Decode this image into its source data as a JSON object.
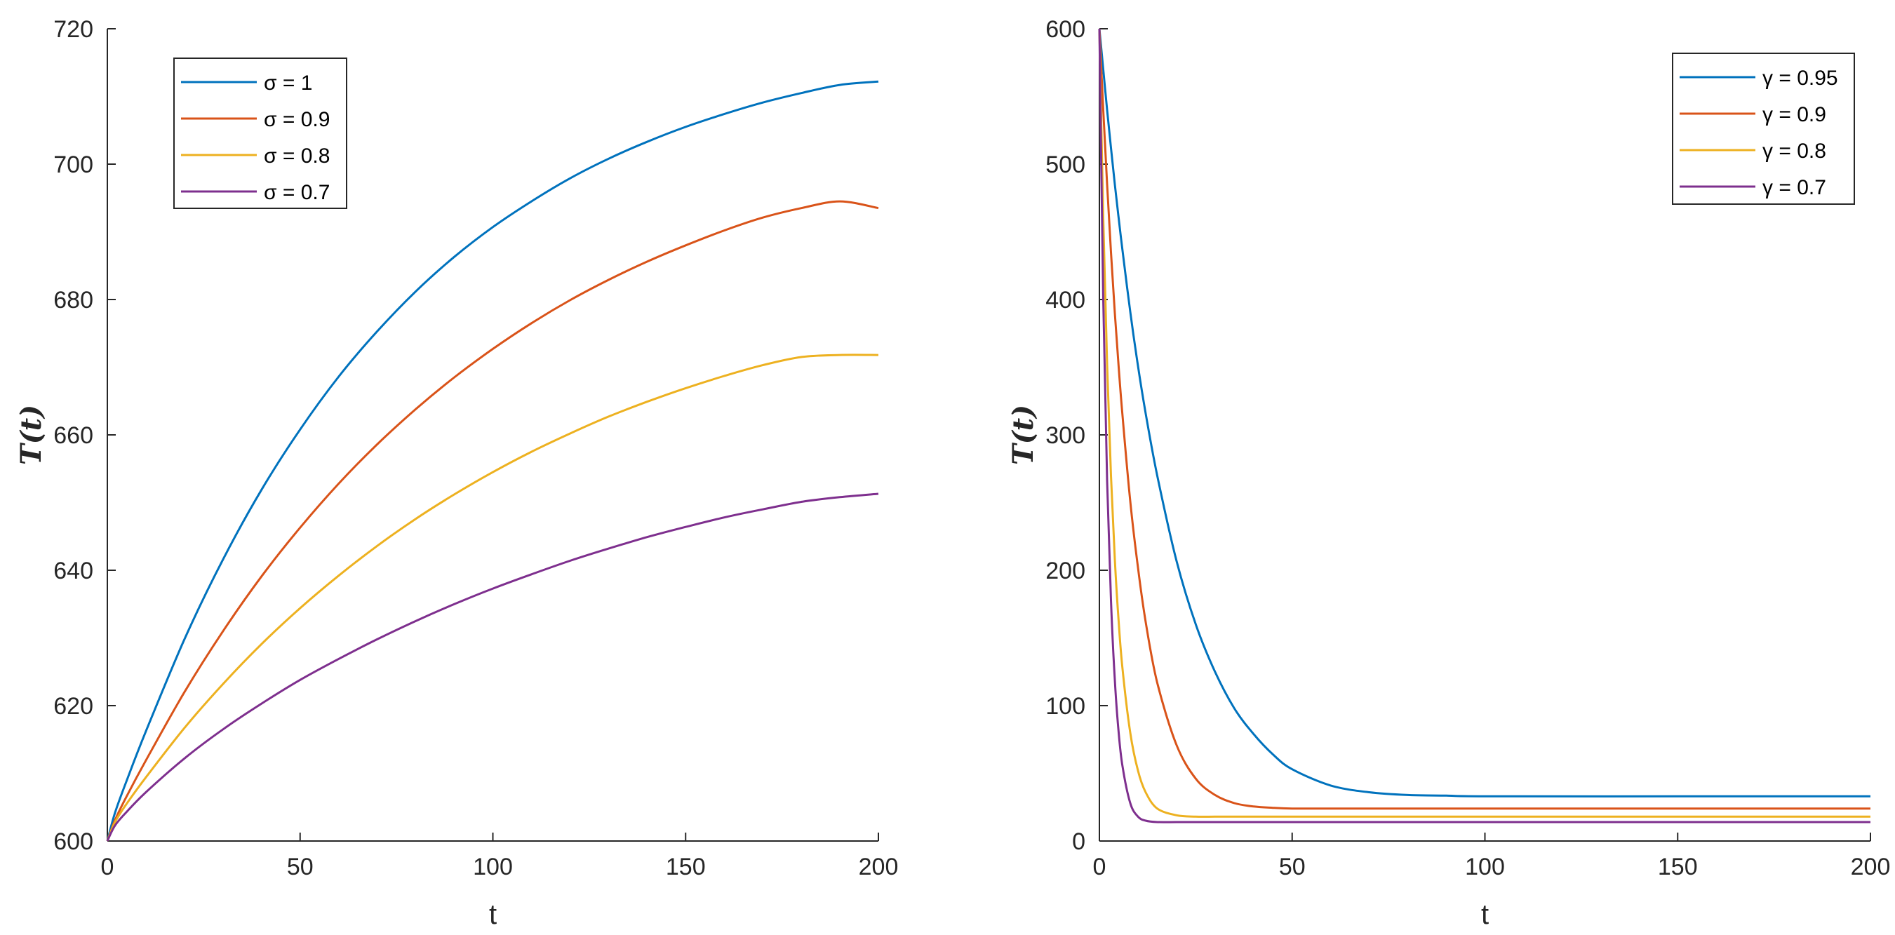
{
  "chart_data": [
    {
      "type": "line",
      "xlabel": "t",
      "ylabel": "T(t)",
      "xlim": [
        0,
        200
      ],
      "ylim": [
        600,
        720
      ],
      "xticks": [
        "0",
        "50",
        "100",
        "150",
        "200"
      ],
      "yticks": [
        "600",
        "620",
        "640",
        "660",
        "680",
        "700",
        "720"
      ],
      "grid": false,
      "legend_position": "top-left",
      "x": [
        0,
        2,
        5,
        10,
        20,
        30,
        40,
        50,
        60,
        70,
        80,
        90,
        100,
        110,
        120,
        130,
        140,
        150,
        160,
        170,
        180,
        190,
        200
      ],
      "series": [
        {
          "name": "σ = 1",
          "color": "#0072BD",
          "values": [
            600,
            604.2,
            608.9,
            616.2,
            629.8,
            641.6,
            651.9,
            660.8,
            668.6,
            675.3,
            681.2,
            686.3,
            690.7,
            694.5,
            697.9,
            700.8,
            703.3,
            705.5,
            707.4,
            709.1,
            710.5,
            711.7,
            712.2
          ]
        },
        {
          "name": "σ = 0.9",
          "color": "#D95319",
          "values": [
            600,
            603.1,
            606.6,
            611.9,
            622.0,
            631.0,
            639.1,
            646.3,
            652.8,
            658.6,
            663.8,
            668.5,
            672.7,
            676.5,
            679.9,
            682.9,
            685.6,
            688.0,
            690.2,
            692.1,
            693.5,
            694.5,
            693.5
          ]
        },
        {
          "name": "σ = 0.8",
          "color": "#EDB120",
          "values": [
            600,
            602.8,
            605.5,
            609.4,
            616.7,
            623.2,
            629.1,
            634.4,
            639.2,
            643.6,
            647.6,
            651.2,
            654.5,
            657.5,
            660.2,
            662.7,
            664.9,
            666.9,
            668.7,
            670.3,
            671.5,
            671.8,
            671.8
          ]
        },
        {
          "name": "σ = 0.7",
          "color": "#7E2F8E",
          "values": [
            600,
            602.3,
            604.3,
            607.2,
            612.2,
            616.5,
            620.3,
            623.8,
            626.9,
            629.8,
            632.5,
            635.0,
            637.3,
            639.4,
            641.4,
            643.2,
            644.9,
            646.4,
            647.8,
            649.0,
            650.1,
            650.8,
            651.3
          ]
        }
      ]
    },
    {
      "type": "line",
      "xlabel": "t",
      "ylabel": "T(t)",
      "xlim": [
        0,
        200
      ],
      "ylim": [
        0,
        600
      ],
      "xticks": [
        "0",
        "50",
        "100",
        "150",
        "200"
      ],
      "yticks": [
        "0",
        "100",
        "200",
        "300",
        "400",
        "500",
        "600"
      ],
      "grid": false,
      "legend_position": "top-right",
      "x": [
        0,
        1,
        2,
        3,
        4,
        5,
        6,
        8,
        10,
        12,
        15,
        20,
        25,
        30,
        35,
        40,
        45,
        50,
        60,
        70,
        80,
        90,
        100,
        150,
        200
      ],
      "series": [
        {
          "name": "γ = 0.95",
          "color": "#0072BD",
          "values": [
            600,
            570,
            540,
            512,
            485,
            460,
            436,
            391,
            351,
            316,
            270,
            207,
            160,
            125,
            98,
            79,
            64,
            53,
            41,
            36,
            34,
            33.5,
            33,
            33,
            33
          ]
        },
        {
          "name": "γ = 0.9",
          "color": "#D95319",
          "values": [
            600,
            540,
            485,
            435,
            390,
            350,
            314,
            251,
            202,
            162,
            117,
            71,
            46,
            34,
            28,
            25.5,
            24.5,
            24,
            24,
            24,
            24,
            24,
            24,
            24,
            24
          ]
        },
        {
          "name": "γ = 0.8",
          "color": "#EDB120",
          "values": [
            600,
            460,
            352,
            270,
            208,
            162,
            127,
            80,
            52,
            36,
            24,
            19,
            18,
            18,
            18,
            18,
            18,
            18,
            18,
            18,
            18,
            18,
            18,
            18,
            18
          ]
        },
        {
          "name": "γ = 0.7",
          "color": "#7E2F8E",
          "values": [
            600,
            400,
            266,
            178,
            119,
            80,
            55,
            28,
            18,
            15,
            14,
            14,
            14,
            14,
            14,
            14,
            14,
            14,
            14,
            14,
            14,
            14,
            14,
            14,
            14
          ]
        }
      ]
    }
  ]
}
